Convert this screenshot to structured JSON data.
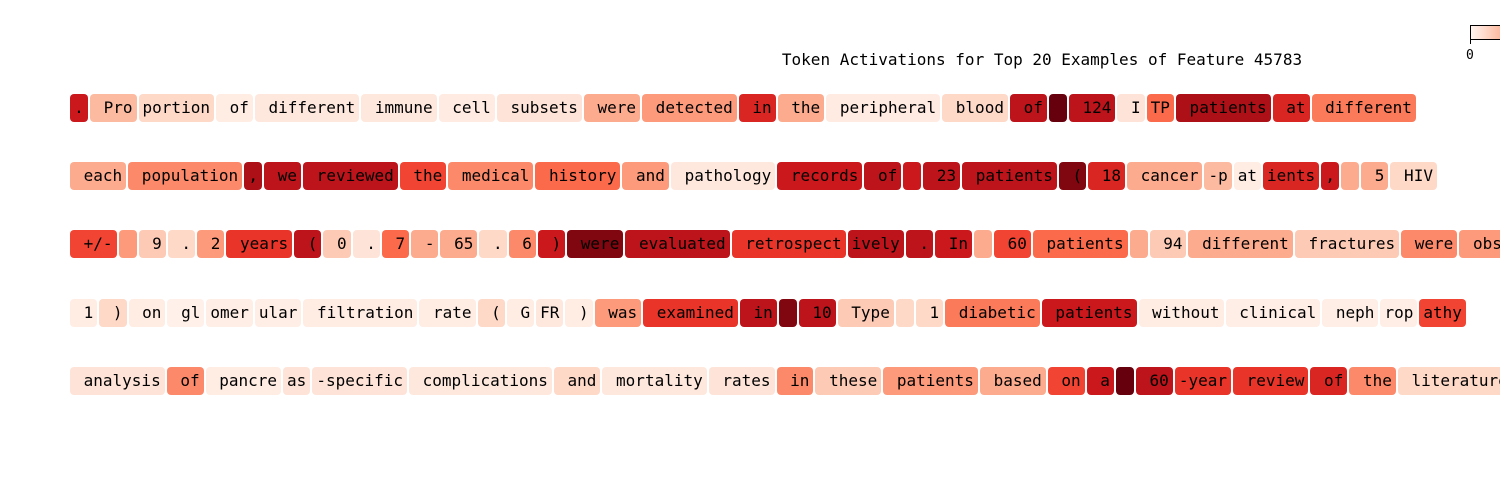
{
  "chart_data": {
    "type": "heatmap",
    "title": "Token Activations for Top 20 Examples of Feature 45783",
    "colorbar": {
      "min_label": "0",
      "colormap": "Reds"
    },
    "rows": [
      {
        "tokens": [
          [
            ".",
            0.75
          ],
          [
            " Pro",
            0.25
          ],
          [
            "portion",
            0.15
          ],
          [
            " of",
            0.05
          ],
          [
            " different",
            0.08
          ],
          [
            " immune",
            0.08
          ],
          [
            " cell",
            0.06
          ],
          [
            " subsets",
            0.1
          ],
          [
            " were",
            0.3
          ],
          [
            " detected",
            0.35
          ],
          [
            " in",
            0.7
          ],
          [
            " the",
            0.3
          ],
          [
            " peripheral",
            0.06
          ],
          [
            " blood",
            0.15
          ],
          [
            " of",
            0.8
          ],
          [
            " ",
            1.0
          ],
          [
            " 124",
            0.8
          ],
          [
            " I",
            0.1
          ],
          [
            "TP",
            0.5
          ],
          [
            " patients",
            0.85
          ],
          [
            " at",
            0.7
          ],
          [
            " different",
            0.45
          ]
        ]
      },
      {
        "tokens": [
          [
            " each",
            0.3
          ],
          [
            " population",
            0.4
          ],
          [
            ",",
            0.85
          ],
          [
            " we",
            0.8
          ],
          [
            " reviewed",
            0.8
          ],
          [
            " the",
            0.6
          ],
          [
            " medical",
            0.4
          ],
          [
            " history",
            0.5
          ],
          [
            " and",
            0.35
          ],
          [
            " pathology",
            0.08
          ],
          [
            " records",
            0.75
          ],
          [
            " of",
            0.8
          ],
          [
            " ",
            0.75
          ],
          [
            " 23",
            0.8
          ],
          [
            " patients",
            0.8
          ],
          [
            " (",
            0.95
          ],
          [
            " 18",
            0.7
          ],
          [
            " cancer",
            0.3
          ],
          [
            "-p",
            0.25
          ],
          [
            "at",
            0.05
          ],
          [
            "ients",
            0.7
          ],
          [
            ",",
            0.75
          ],
          [
            " ",
            0.3
          ],
          [
            " 5",
            0.3
          ],
          [
            " HIV",
            0.15
          ]
        ]
      },
      {
        "tokens": [
          [
            " +/-",
            0.6
          ],
          [
            " ",
            0.35
          ],
          [
            " 9",
            0.2
          ],
          [
            " .",
            0.15
          ],
          [
            " 2",
            0.35
          ],
          [
            " years",
            0.65
          ],
          [
            " (",
            0.8
          ],
          [
            " 0",
            0.2
          ],
          [
            " .",
            0.1
          ],
          [
            " 7",
            0.5
          ],
          [
            " -",
            0.3
          ],
          [
            " 65",
            0.3
          ],
          [
            " .",
            0.15
          ],
          [
            " 6",
            0.4
          ],
          [
            " )",
            0.75
          ],
          [
            " were",
            0.95
          ],
          [
            " evaluated",
            0.8
          ],
          [
            " retrospect",
            0.65
          ],
          [
            "ively",
            0.8
          ],
          [
            " .",
            0.8
          ],
          [
            " In",
            0.75
          ],
          [
            " ",
            0.3
          ],
          [
            " 60",
            0.6
          ],
          [
            " patients",
            0.5
          ],
          [
            " ",
            0.3
          ],
          [
            " 94",
            0.2
          ],
          [
            " different",
            0.3
          ],
          [
            " fractures",
            0.2
          ],
          [
            " were",
            0.4
          ],
          [
            " observed",
            0.35
          ]
        ]
      },
      {
        "tokens": [
          [
            " 1",
            0.05
          ],
          [
            " )",
            0.15
          ],
          [
            " on",
            0.05
          ],
          [
            " gl",
            0.03
          ],
          [
            "omer",
            0.04
          ],
          [
            "ular",
            0.04
          ],
          [
            " filtration",
            0.05
          ],
          [
            " rate",
            0.05
          ],
          [
            " (",
            0.15
          ],
          [
            " G",
            0.05
          ],
          [
            "FR",
            0.08
          ],
          [
            " )",
            0.05
          ],
          [
            " was",
            0.35
          ],
          [
            " examined",
            0.65
          ],
          [
            " in",
            0.8
          ],
          [
            " ",
            0.95
          ],
          [
            " 10",
            0.8
          ],
          [
            " Type",
            0.2
          ],
          [
            " ",
            0.15
          ],
          [
            " 1",
            0.15
          ],
          [
            " diabetic",
            0.45
          ],
          [
            " patients",
            0.75
          ],
          [
            " without",
            0.05
          ],
          [
            " clinical",
            0.04
          ],
          [
            " neph",
            0.04
          ],
          [
            "rop",
            0.04
          ],
          [
            "athy",
            0.6
          ]
        ]
      },
      {
        "tokens": [
          [
            " analysis",
            0.1
          ],
          [
            " of",
            0.4
          ],
          [
            " pancre",
            0.05
          ],
          [
            "as",
            0.1
          ],
          [
            "-specific",
            0.1
          ],
          [
            " complications",
            0.08
          ],
          [
            " and",
            0.15
          ],
          [
            " mortality",
            0.08
          ],
          [
            " rates",
            0.1
          ],
          [
            " in",
            0.4
          ],
          [
            " these",
            0.2
          ],
          [
            " patients",
            0.35
          ],
          [
            " based",
            0.3
          ],
          [
            " on",
            0.6
          ],
          [
            " a",
            0.75
          ],
          [
            " ",
            1.0
          ],
          [
            " 60",
            0.8
          ],
          [
            "-year",
            0.65
          ],
          [
            " review",
            0.65
          ],
          [
            " of",
            0.7
          ],
          [
            " the",
            0.4
          ],
          [
            " literature",
            0.15
          ]
        ]
      }
    ]
  }
}
